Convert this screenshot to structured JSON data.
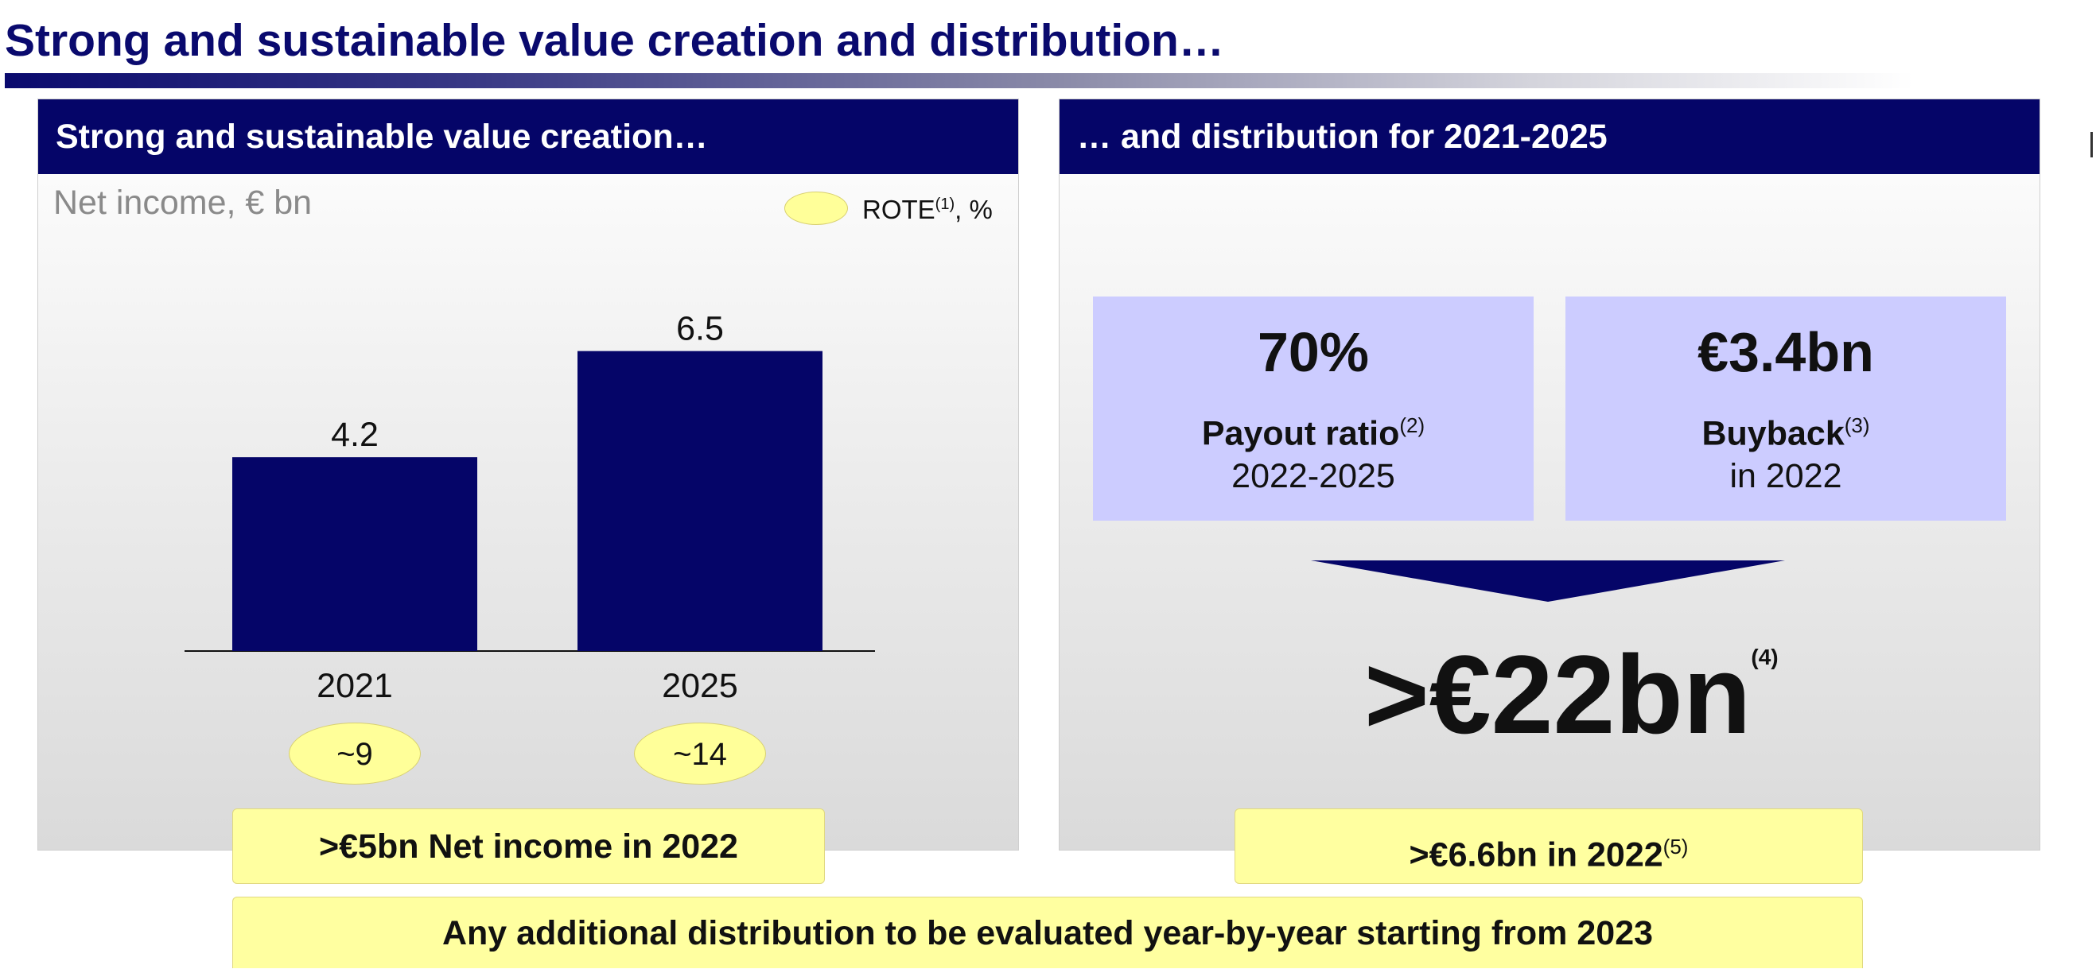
{
  "page": {
    "title": "Strong and sustainable value creation and distribution…"
  },
  "left_panel": {
    "header": "Strong and sustainable value creation…",
    "unit_label": "Net income, € bn",
    "legend": {
      "label": "ROTE",
      "footnote": "(1)",
      "unit": ", %",
      "swatch_color": "#ffff99"
    },
    "rote_values": [
      "~9",
      "~14"
    ],
    "callout": ">€5bn Net income in 2022"
  },
  "chart_data": {
    "type": "bar",
    "categories": [
      "2021",
      "2025"
    ],
    "values": [
      4.2,
      6.5
    ],
    "value_labels": [
      "4.2",
      "6.5"
    ],
    "ylim": [
      0,
      7.2
    ],
    "bar_color": "#050568",
    "grid": false
  },
  "right_panel": {
    "header": "… and distribution for 2021-2025",
    "payout": {
      "value": "70%",
      "label": "Payout ratio",
      "footnote": "(2)",
      "sub": "2022-2025"
    },
    "buyback": {
      "value": "€3.4bn",
      "label": "Buyback",
      "footnote": "(3)",
      "sub": "in 2022"
    },
    "total": {
      "value": ">€22bn",
      "footnote": "(4)"
    },
    "callout": {
      "text": ">€6.6bn in 2022",
      "footnote": "(5)"
    }
  },
  "bottom_callout": "Any additional distribution to be evaluated year-by-year starting from 2023",
  "colors": {
    "header_navy": "#050568",
    "title_navy": "#0a0a6e",
    "stat_box": "#ccccff",
    "callout_yellow": "#ffffa0"
  }
}
